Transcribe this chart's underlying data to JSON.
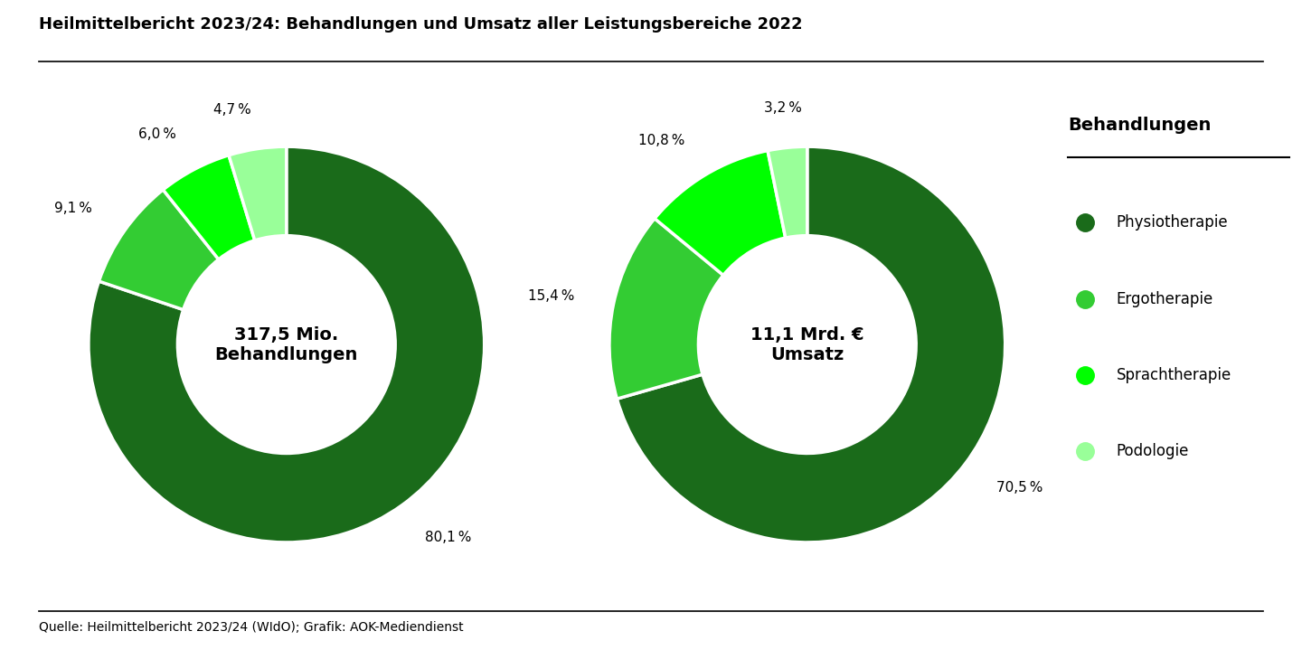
{
  "title": "Heilmittelbericht 2023/24: Behandlungen und Umsatz aller Leistungsbereiche 2022",
  "source": "Quelle: Heilmittelbericht 2023/24 (WIdO); Grafik: AOK-Mediendienst",
  "legend_title": "Behandlungen",
  "categories": [
    "Physiotherapie",
    "Ergotherapie",
    "Sprachtherapie",
    "Podologie"
  ],
  "colors": [
    "#1a6b1a",
    "#33cc33",
    "#00ff00",
    "#99ff99"
  ],
  "chart1": {
    "values": [
      80.1,
      9.1,
      6.0,
      4.7
    ],
    "labels": [
      "80,1 %",
      "9,1 %",
      "6,0 %",
      "4,7 %"
    ],
    "center_text": "317,5 Mio.\nBehandlungen"
  },
  "chart2": {
    "values": [
      70.5,
      15.4,
      10.8,
      3.2
    ],
    "labels": [
      "70,5 %",
      "15,4 %",
      "10,8 %",
      "3,2 %"
    ],
    "center_text": "11,1 Mrd. €\nUmsatz"
  },
  "background_color": "#ffffff"
}
